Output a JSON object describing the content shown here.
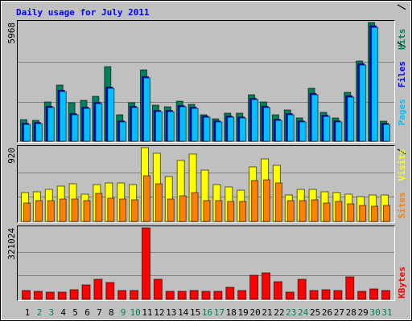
{
  "chart_data": [
    {
      "type": "bar",
      "title": "Daily usage for July 2011",
      "ylim": [
        0,
        5968
      ],
      "yticks": [
        5968
      ],
      "series": [
        {
          "name": "Hits",
          "color": "#00805c",
          "values": [
            1088,
            1048,
            1975,
            2821,
            1934,
            2055,
            2257,
            3748,
            1330,
            1934,
            3587,
            1814,
            1733,
            2015,
            1854,
            1330,
            1128,
            1411,
            1411,
            2337,
            1975,
            1330,
            1572,
            1169,
            2660,
            1451,
            1169,
            2458,
            4030,
            5968,
            1008
          ]
        },
        {
          "name": "Files",
          "color": "#0000ff",
          "values": [
            900,
            940,
            1750,
            2560,
            1390,
            1710,
            1950,
            2720,
            1020,
            1750,
            3250,
            1550,
            1550,
            1790,
            1710,
            1260,
            1020,
            1260,
            1220,
            2150,
            1750,
            1100,
            1390,
            1020,
            2400,
            1300,
            1020,
            2280,
            3900,
            5800,
            900
          ]
        },
        {
          "name": "Pages",
          "color": "#00c0ff",
          "values": [
            846,
            887,
            1693,
            2499,
            1330,
            1652,
            1894,
            2660,
            967,
            1693,
            3184,
            1491,
            1491,
            1733,
            1652,
            1209,
            967,
            1209,
            1169,
            2096,
            1693,
            1048,
            1330,
            967,
            2337,
            1249,
            967,
            2217,
            3829,
            5723,
            846
          ]
        }
      ]
    },
    {
      "type": "bar",
      "ylim": [
        0,
        920
      ],
      "yticks": [
        920
      ],
      "series": [
        {
          "name": "Visits",
          "color": "#ffff00",
          "values": [
            360,
            370,
            400,
            440,
            470,
            340,
            460,
            480,
            480,
            460,
            920,
            850,
            560,
            760,
            840,
            640,
            460,
            430,
            390,
            680,
            780,
            700,
            330,
            400,
            400,
            370,
            360,
            340,
            310,
            330,
            330
          ]
        },
        {
          "name": "Sites",
          "color": "#ff8000",
          "values": [
            230,
            260,
            260,
            280,
            280,
            260,
            350,
            290,
            280,
            270,
            570,
            470,
            280,
            320,
            360,
            260,
            260,
            250,
            250,
            510,
            520,
            480,
            260,
            260,
            270,
            230,
            250,
            220,
            200,
            190,
            200
          ]
        }
      ]
    },
    {
      "type": "bar",
      "ylim": [
        0,
        321024
      ],
      "yticks": [
        321024
      ],
      "categories": [
        "1",
        "2",
        "3",
        "4",
        "5",
        "6",
        "7",
        "8",
        "9",
        "10",
        "11",
        "12",
        "13",
        "14",
        "15",
        "16",
        "17",
        "18",
        "19",
        "20",
        "21",
        "22",
        "23",
        "24",
        "25",
        "26",
        "27",
        "28",
        "29",
        "30",
        "31"
      ],
      "category_colors": [
        "#000000",
        "#00805c",
        "#00805c",
        "#000000",
        "#000000",
        "#000000",
        "#000000",
        "#000000",
        "#00805c",
        "#00805c",
        "#000000",
        "#000000",
        "#000000",
        "#000000",
        "#000000",
        "#00805c",
        "#00805c",
        "#000000",
        "#000000",
        "#000000",
        "#000000",
        "#000000",
        "#00805c",
        "#00805c",
        "#000000",
        "#000000",
        "#000000",
        "#000000",
        "#000000",
        "#00805c",
        "#00805c"
      ],
      "series": [
        {
          "name": "KBytes",
          "color": "#ff0000",
          "values": [
            39677,
            36070,
            32463,
            32463,
            43284,
            64926,
            90175,
            75747,
            39677,
            39677,
            321024,
            90175,
            36070,
            36070,
            39677,
            36070,
            36070,
            54105,
            39677,
            108210,
            119031,
            79354,
            32463,
            90175,
            39677,
            43284,
            39677,
            100996,
            36070,
            46891,
            39677
          ]
        }
      ]
    }
  ]
}
